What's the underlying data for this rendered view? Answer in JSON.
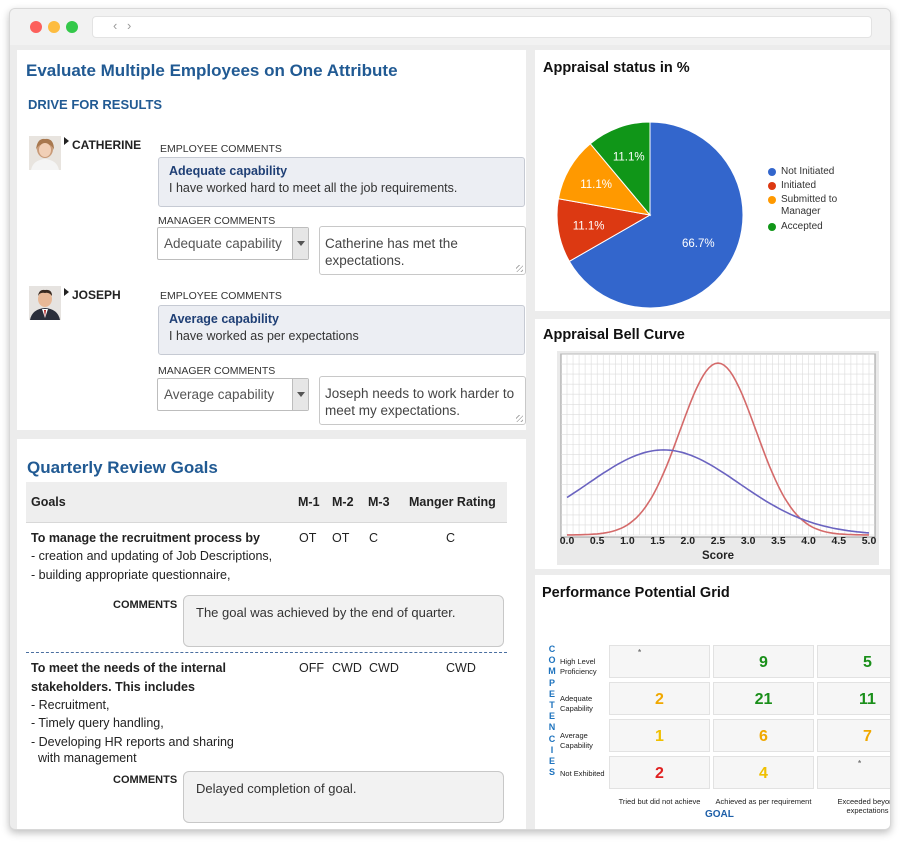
{
  "evaluation": {
    "title": "Evaluate Multiple Employees on One Attribute",
    "attribute": "DRIVE FOR RESULTS",
    "employee_comments_label": "EMPLOYEE COMMENTS",
    "manager_comments_label": "MANAGER COMMENTS",
    "employees": [
      {
        "name": "CATHERINE",
        "employee_capability": "Adequate capability",
        "employee_comment": "I have worked hard to meet all the job requirements.",
        "manager_rating": "Adequate capability",
        "manager_comment": "Catherine has met the expectations."
      },
      {
        "name": "JOSEPH",
        "employee_capability": "Average capability",
        "employee_comment": "I have worked as per expectations",
        "manager_rating": "Average capability",
        "manager_comment": "Joseph needs to work harder to meet my expectations."
      }
    ]
  },
  "goals": {
    "title": "Quarterly Review Goals",
    "headers": {
      "goals": "Goals",
      "m1": "M-1",
      "m2": "M-2",
      "m3": "M-3",
      "rating": "Manger Rating"
    },
    "comments_label": "COMMENTS",
    "rows": [
      {
        "title_lines": [
          "To manage the recruitment process by"
        ],
        "items": [
          "- creation and updating of Job Descriptions,",
          "- building appropriate questionnaire,"
        ],
        "m1": "OT",
        "m2": "OT",
        "m3": "C",
        "rating": "C",
        "comment": "The goal was achieved by the end of quarter."
      },
      {
        "title_lines": [
          "To meet the needs of the internal",
          "stakeholders. This includes"
        ],
        "items": [
          "- Recruitment,",
          "- Timely query handling,",
          "- Developing HR reports and sharing",
          "  with management"
        ],
        "m1": "OFF",
        "m2": "CWD",
        "m3": "CWD",
        "rating": "CWD",
        "comment": "Delayed completion of goal."
      }
    ]
  },
  "appraisal_status": {
    "title": "Appraisal status in %",
    "chart_data": {
      "type": "pie",
      "labels": [
        "Not Initiated",
        "Initiated",
        "Submitted to Manager",
        "Accepted"
      ],
      "values": [
        66.7,
        11.1,
        11.1,
        11.1
      ],
      "value_labels": [
        "66.7%",
        "11.1%",
        "11.1%",
        "11.1%"
      ],
      "colors": [
        "#3366cc",
        "#dc3912",
        "#ff9900",
        "#109618"
      ],
      "legend_position": "right"
    },
    "legend_lines": [
      [
        "Not Initiated"
      ],
      [
        "Initiated"
      ],
      [
        "Submitted to",
        "Manager"
      ],
      [
        "Accepted"
      ]
    ]
  },
  "bell_curve": {
    "title": "Appraisal Bell Curve",
    "chart_data": {
      "type": "line",
      "xlabel": "Score",
      "ylabel": "",
      "xlim": [
        0,
        5
      ],
      "x_ticks": [
        "0.0",
        "0.5",
        "1.0",
        "1.5",
        "2.0",
        "2.5",
        "3.0",
        "3.5",
        "4.0",
        "4.5",
        "5.0"
      ],
      "grid": true,
      "series": [
        {
          "mean": 2.5,
          "sd": 0.63,
          "peak": 0.95,
          "color": "#d46a6a"
        },
        {
          "mean": 1.6,
          "sd": 1.25,
          "peak": 0.47,
          "color": "#6a63c0"
        }
      ]
    }
  },
  "performance_grid": {
    "title": "Performance Potential Grid",
    "y_axis_title": "COMPETENCIES",
    "x_axis_title": "GOAL",
    "row_labels": [
      [
        "High Level",
        "Proficiency"
      ],
      [
        "Adequate",
        "Capability"
      ],
      [
        "Average",
        "Capability"
      ],
      [
        "Not Exhibited"
      ]
    ],
    "col_labels": [
      "Tried but did not achieve",
      "Achieved as per requirement",
      "Exceeded beyond expectations"
    ],
    "cells": [
      [
        {
          "v": "*",
          "c": "#777777"
        },
        {
          "v": "9",
          "c": "#1a8f1a"
        },
        {
          "v": "5",
          "c": "#1a8f1a"
        }
      ],
      [
        {
          "v": "2",
          "c": "#f0a800"
        },
        {
          "v": "21",
          "c": "#1a8f1a"
        },
        {
          "v": "11",
          "c": "#1a8f1a"
        }
      ],
      [
        {
          "v": "1",
          "c": "#f0c000"
        },
        {
          "v": "6",
          "c": "#f0a800"
        },
        {
          "v": "7",
          "c": "#f0a800"
        }
      ],
      [
        {
          "v": "2",
          "c": "#e02020"
        },
        {
          "v": "4",
          "c": "#f0c000"
        },
        {
          "v": "*",
          "c": "#777777"
        }
      ]
    ]
  }
}
